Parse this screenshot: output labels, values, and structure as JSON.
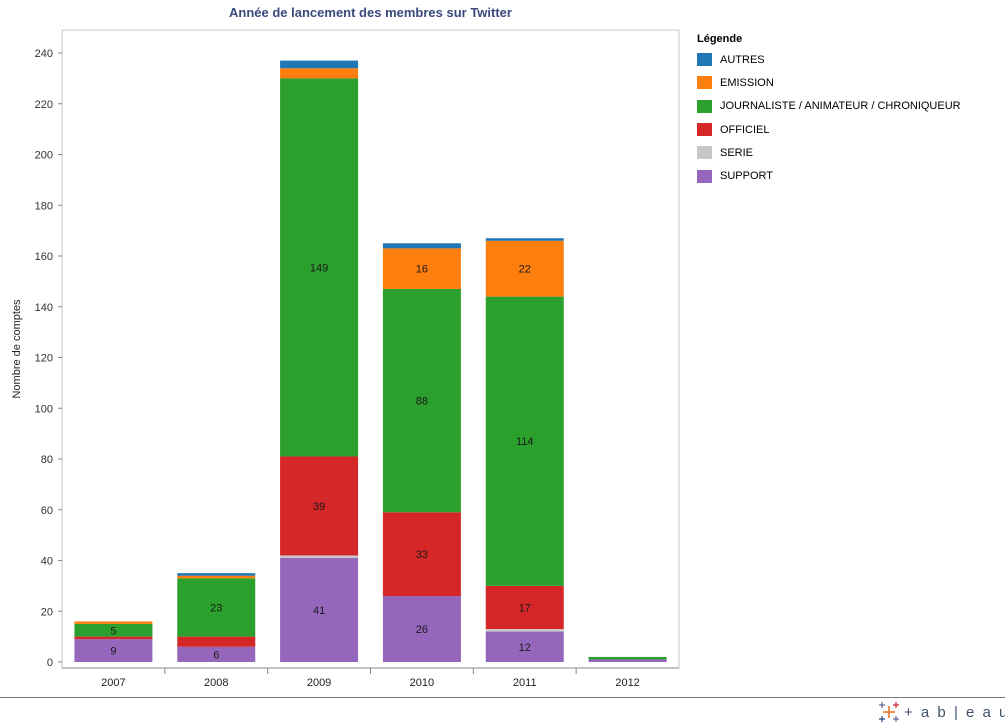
{
  "chart_data": {
    "type": "bar",
    "stacked": true,
    "title": "Année de lancement des membres sur Twitter",
    "xlabel": "",
    "ylabel": "Nombre de comptes",
    "categories": [
      "2007",
      "2008",
      "2009",
      "2010",
      "2011",
      "2012"
    ],
    "ylim": [
      -2,
      245
    ],
    "yticks": [
      0,
      20,
      40,
      60,
      80,
      100,
      120,
      140,
      160,
      180,
      200,
      220,
      240
    ],
    "series": [
      {
        "name": "SUPPORT",
        "color": "#9467bd",
        "values": [
          9,
          6,
          41,
          26,
          12,
          1
        ]
      },
      {
        "name": "SERIE",
        "color": "#c7c7c7",
        "values": [
          0,
          0,
          1,
          0,
          1,
          0
        ]
      },
      {
        "name": "OFFICIEL",
        "color": "#d62728",
        "values": [
          1,
          4,
          39,
          33,
          17,
          0
        ]
      },
      {
        "name": "JOURNALISTE / ANIMATEUR / CHRONIQUEUR",
        "color": "#2ca02c",
        "values": [
          5,
          23,
          149,
          88,
          114,
          1
        ]
      },
      {
        "name": "EMISSION",
        "color": "#ff7f0e",
        "values": [
          1,
          1,
          4,
          16,
          22,
          0
        ]
      },
      {
        "name": "AUTRES",
        "color": "#1f77b4",
        "values": [
          0,
          1,
          3,
          2,
          1,
          0
        ]
      }
    ],
    "labeled": {
      "SUPPORT": [
        9,
        6,
        41,
        26,
        12,
        null
      ],
      "OFFICIEL": [
        null,
        null,
        39,
        33,
        17,
        null
      ],
      "JOURNALISTE / ANIMATEUR / CHRONIQUEUR": [
        5,
        23,
        149,
        88,
        114,
        null
      ],
      "EMISSION": [
        null,
        null,
        null,
        16,
        22,
        null
      ]
    },
    "legend_title": "Légende",
    "legend_order": [
      "AUTRES",
      "EMISSION",
      "JOURNALISTE / ANIMATEUR / CHRONIQUEUR",
      "OFFICIEL",
      "SERIE",
      "SUPPORT"
    ],
    "legend_position": "right",
    "grid": false
  },
  "brand": {
    "text": "+ a b | e a u"
  }
}
